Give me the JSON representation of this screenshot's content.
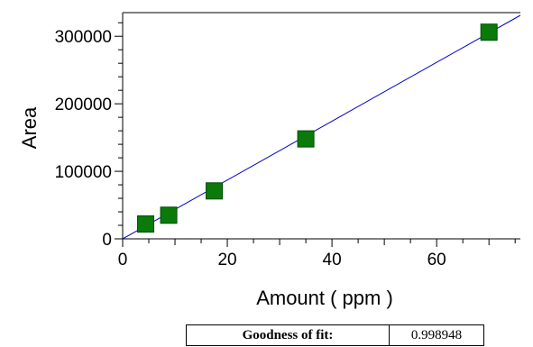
{
  "chart_data": {
    "type": "scatter",
    "xlabel": "Amount ( ppm )",
    "ylabel": "Area",
    "xlim": [
      0,
      76
    ],
    "ylim": [
      0,
      335000
    ],
    "x_ticks": [
      0,
      20,
      40,
      60
    ],
    "y_ticks": [
      0,
      100000,
      200000,
      300000
    ],
    "points": [
      {
        "x": 4.4,
        "y": 22000
      },
      {
        "x": 8.8,
        "y": 35000
      },
      {
        "x": 17.5,
        "y": 71000
      },
      {
        "x": 35,
        "y": 148000
      },
      {
        "x": 70,
        "y": 306000
      }
    ],
    "fit_line": {
      "x": [
        0,
        76
      ],
      "y": [
        0,
        331000
      ]
    },
    "grid": false,
    "colors": {
      "marker": "#0a7a0a",
      "marker_edge": "#004d00",
      "line": "#0000cc"
    }
  },
  "fit_table": {
    "label": "Goodness of fit:",
    "value": "0.998948"
  }
}
